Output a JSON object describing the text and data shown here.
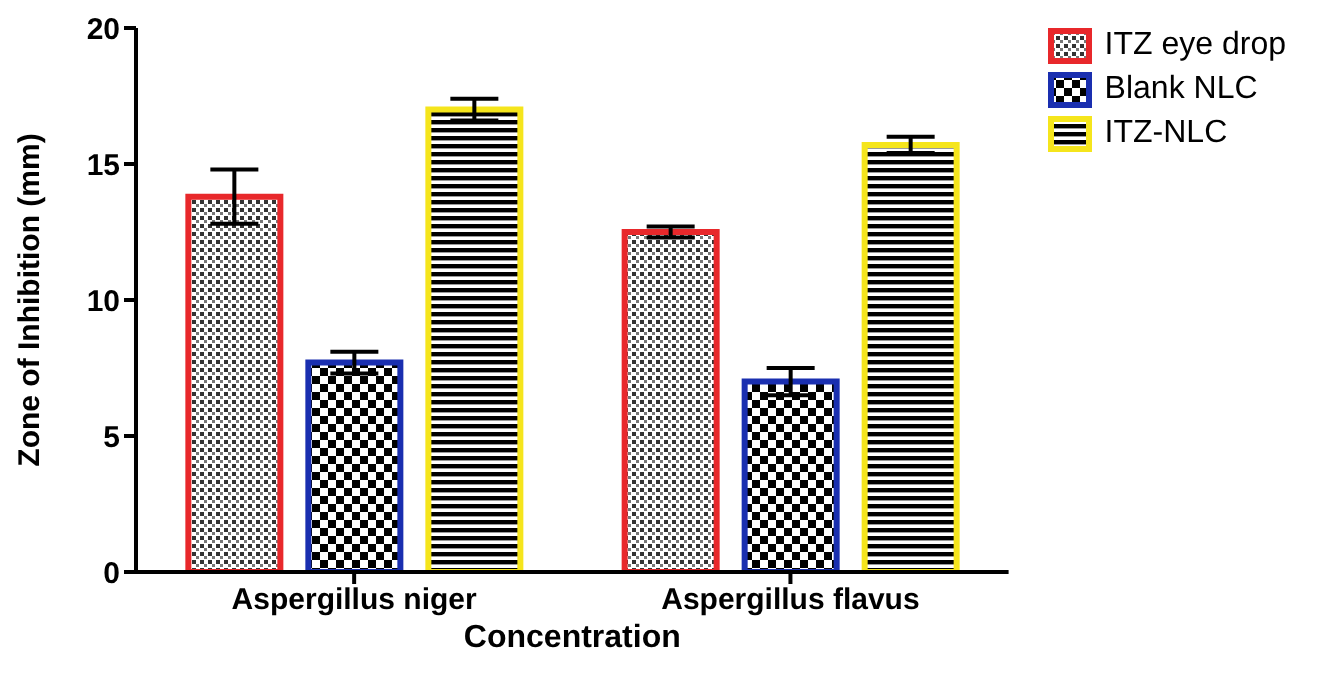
{
  "chart_data": {
    "type": "bar",
    "xlabel": "Concentration",
    "ylabel": "Zone of Inhibition (mm)",
    "categories": [
      "Aspergillus niger",
      "Aspergillus flavus"
    ],
    "series": [
      {
        "name": "ITZ eye drop",
        "color": "#e8282b",
        "values": [
          13.8,
          12.5
        ],
        "errors": [
          1.0,
          0.2
        ]
      },
      {
        "name": "Blank NLC",
        "color": "#1a2fb0",
        "values": [
          7.7,
          7.0
        ],
        "errors": [
          0.4,
          0.5
        ]
      },
      {
        "name": "ITZ-NLC",
        "color": "#f5e51c",
        "values": [
          17.0,
          15.7
        ],
        "errors": [
          0.4,
          0.3
        ]
      }
    ],
    "ylim": [
      0,
      20
    ],
    "yticks": [
      0,
      5,
      10,
      15,
      20
    ],
    "grid": false,
    "legend": "top right"
  }
}
